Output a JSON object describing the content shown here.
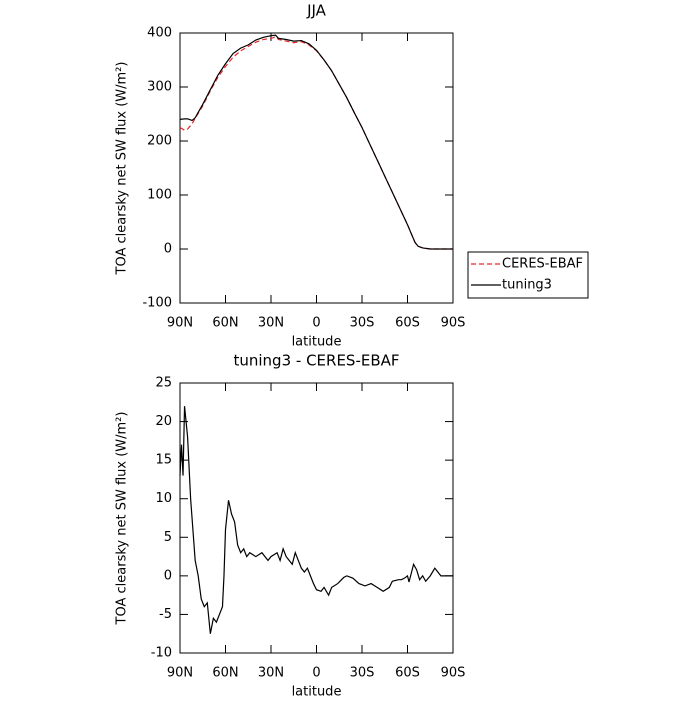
{
  "chart_data": [
    {
      "type": "line",
      "title": "JJA",
      "xlabel": "latitude",
      "ylabel": "TOA clearsky net SW flux (W/m²)",
      "x": [
        90,
        87,
        85,
        82,
        80,
        75,
        70,
        65,
        60,
        55,
        50,
        45,
        40,
        35,
        30,
        27,
        25,
        20,
        15,
        10,
        5,
        0,
        -5,
        -10,
        -15,
        -20,
        -25,
        -30,
        -35,
        -40,
        -45,
        -50,
        -55,
        -60,
        -63,
        -65,
        -67,
        -70,
        -75,
        -80,
        -90
      ],
      "series": [
        {
          "name": "CERES-EBAF",
          "color": "#e8262a",
          "style": "dashed",
          "values": [
            225,
            220,
            222,
            232,
            242,
            265,
            293,
            318,
            338,
            355,
            367,
            375,
            383,
            388,
            390,
            393,
            388,
            385,
            382,
            384,
            378,
            367,
            350,
            330,
            305,
            280,
            252,
            225,
            195,
            165,
            135,
            105,
            75,
            45,
            25,
            12,
            5,
            2,
            0,
            0,
            0
          ]
        },
        {
          "name": "tuning3",
          "color": "#000000",
          "style": "solid",
          "values": [
            240,
            241,
            241,
            238,
            243,
            268,
            295,
            322,
            343,
            362,
            372,
            378,
            387,
            392,
            395,
            396,
            390,
            388,
            385,
            386,
            380,
            368,
            350,
            330,
            305,
            280,
            252,
            225,
            195,
            165,
            135,
            105,
            75,
            45,
            25,
            12,
            5,
            2,
            0,
            0,
            0
          ]
        }
      ],
      "xlim": [
        90,
        -90
      ],
      "xticks": [
        {
          "value": 90,
          "label": "90N"
        },
        {
          "value": 60,
          "label": "60N"
        },
        {
          "value": 30,
          "label": "30N"
        },
        0,
        {
          "value": -30,
          "label": "30S"
        },
        {
          "value": -60,
          "label": "60S"
        },
        {
          "value": -90,
          "label": "90S"
        }
      ],
      "ylim": [
        -100,
        400
      ],
      "yticks": [
        -100,
        0,
        100,
        200,
        300,
        400
      ],
      "legend": "right"
    },
    {
      "type": "line",
      "title": "tuning3 - CERES-EBAF",
      "xlabel": "latitude",
      "ylabel": "TOA clearsky net SW flux (W/m²)",
      "x": [
        90,
        89,
        88,
        87,
        86,
        85,
        83,
        80,
        78,
        76,
        74,
        72,
        70,
        68,
        66,
        64,
        62,
        61,
        60,
        58,
        56,
        54,
        52,
        50,
        48,
        46,
        44,
        40,
        36,
        32,
        30,
        26,
        24,
        22,
        20,
        16,
        14,
        12,
        10,
        8,
        6,
        4,
        2,
        0,
        -3,
        -5,
        -8,
        -10,
        -14,
        -18,
        -20,
        -24,
        -28,
        -32,
        -36,
        -40,
        -44,
        -48,
        -50,
        -54,
        -56,
        -58,
        -60,
        -61,
        -64,
        -66,
        -68,
        -70,
        -72,
        -75,
        -78,
        -80,
        -82,
        -90
      ],
      "series": [
        {
          "name": "tuning3 - CERES-EBAF",
          "color": "#000000",
          "style": "solid",
          "values": [
            13,
            17,
            13,
            22,
            20,
            18,
            10,
            2,
            0,
            -3,
            -4,
            -3.5,
            -7.5,
            -5.5,
            -6,
            -5,
            -4,
            0,
            6,
            9.8,
            8,
            7,
            4,
            3,
            3.5,
            2.5,
            3,
            2.5,
            3,
            2,
            2.5,
            3,
            2,
            3.5,
            2.5,
            1.5,
            3,
            2,
            1,
            0.5,
            1,
            0,
            -1,
            -1.8,
            -2,
            -1.5,
            -2.5,
            -1.5,
            -1,
            -0.2,
            0,
            -0.3,
            -1,
            -1.3,
            -1,
            -1.5,
            -2,
            -1.5,
            -0.7,
            -0.5,
            -0.5,
            -0.3,
            0,
            -0.8,
            1.5,
            0.8,
            -0.5,
            0,
            -0.7,
            0,
            1,
            0.5,
            0,
            0
          ]
        }
      ],
      "xlim": [
        90,
        -90
      ],
      "xticks": [
        {
          "value": 90,
          "label": "90N"
        },
        {
          "value": 60,
          "label": "60N"
        },
        {
          "value": 30,
          "label": "30N"
        },
        0,
        {
          "value": -30,
          "label": "30S"
        },
        {
          "value": -60,
          "label": "60S"
        },
        {
          "value": -90,
          "label": "90S"
        }
      ],
      "ylim": [
        -10,
        25
      ],
      "yticks": [
        -10,
        -5,
        0,
        5,
        10,
        15,
        20,
        25
      ]
    }
  ]
}
